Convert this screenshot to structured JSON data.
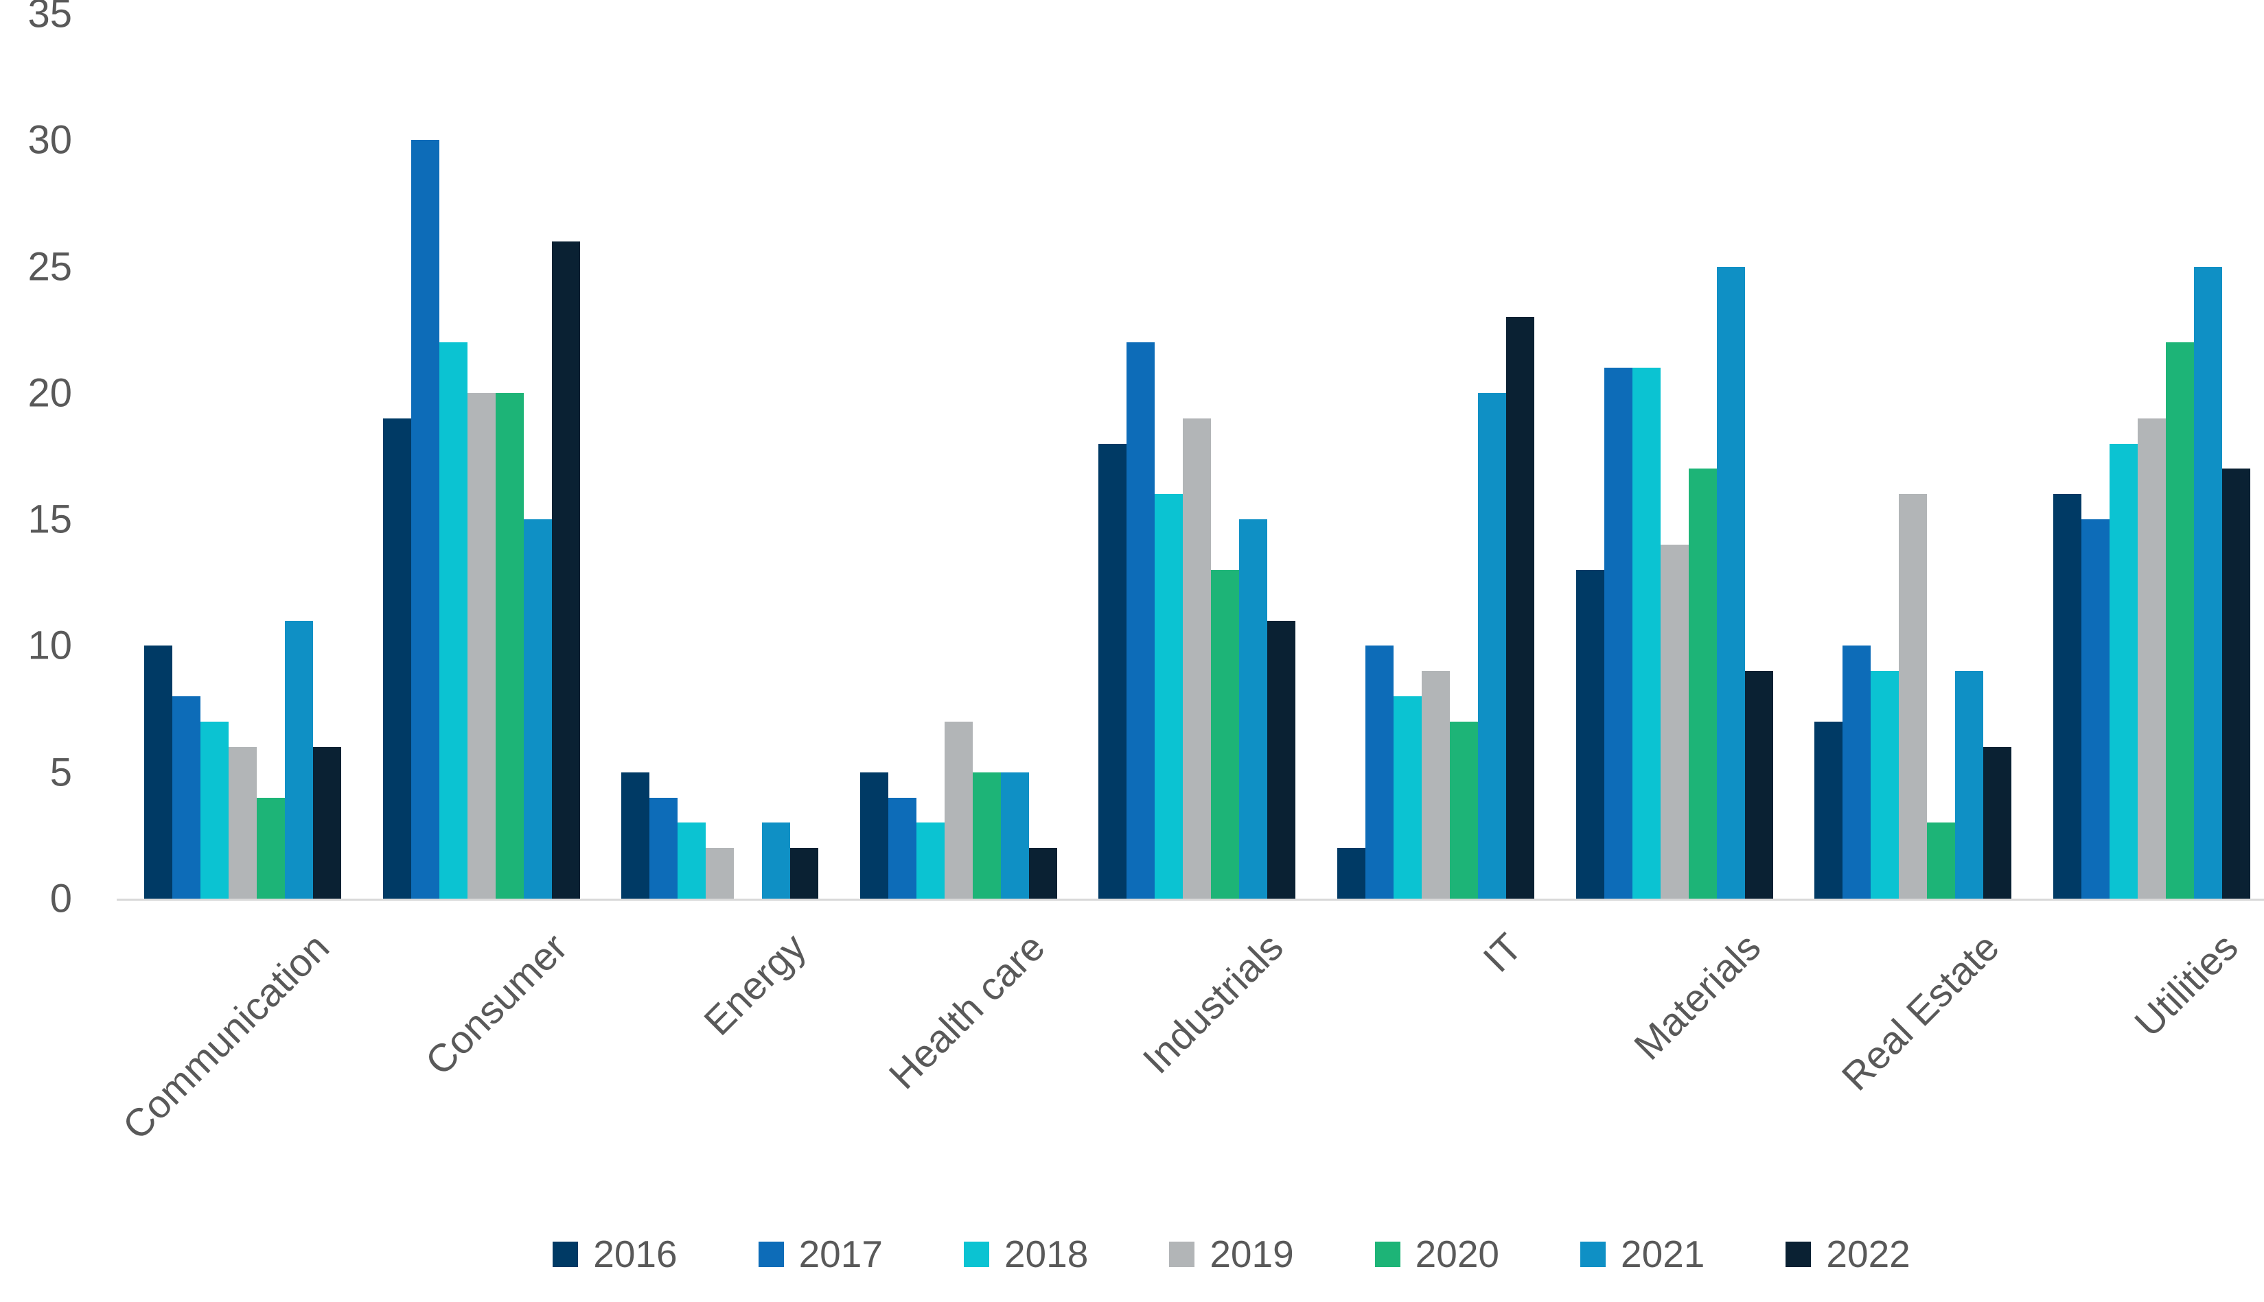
{
  "chart_data": {
    "type": "bar",
    "title": "",
    "xlabel": "",
    "ylabel": "",
    "categories": [
      "Communication",
      "Consumer",
      "Energy",
      "Health care",
      "Industrials",
      "IT",
      "Materials",
      "Real Estate",
      "Utilities"
    ],
    "series": [
      {
        "name": "2016",
        "color": "#003a65",
        "values": [
          10,
          19,
          5,
          5,
          18,
          2,
          13,
          7,
          16
        ]
      },
      {
        "name": "2017",
        "color": "#0d6cb8",
        "values": [
          8,
          30,
          4,
          4,
          22,
          10,
          21,
          10,
          15
        ]
      },
      {
        "name": "2018",
        "color": "#0bc3d2",
        "values": [
          7,
          22,
          3,
          3,
          16,
          8,
          21,
          9,
          18
        ]
      },
      {
        "name": "2019",
        "color": "#b2b5b7",
        "values": [
          6,
          20,
          2,
          7,
          19,
          9,
          14,
          16,
          19
        ]
      },
      {
        "name": "2020",
        "color": "#1db477",
        "values": [
          4,
          20,
          0,
          5,
          13,
          7,
          17,
          3,
          22
        ]
      },
      {
        "name": "2021",
        "color": "#0f90c5",
        "values": [
          11,
          15,
          3,
          5,
          15,
          20,
          25,
          9,
          25
        ]
      },
      {
        "name": "2022",
        "color": "#0a2133",
        "values": [
          6,
          26,
          2,
          2,
          11,
          23,
          9,
          6,
          17
        ]
      }
    ],
    "y_axis": {
      "min": 0,
      "max": 35,
      "step": 5,
      "ticks": [
        "0",
        "5",
        "10",
        "15",
        "20",
        "25",
        "30",
        "35"
      ]
    },
    "grid": false,
    "legend_position": "bottom",
    "axis_line_color": "#d9d9d9",
    "text_color": "#595959",
    "background_color": "#ffffff"
  }
}
